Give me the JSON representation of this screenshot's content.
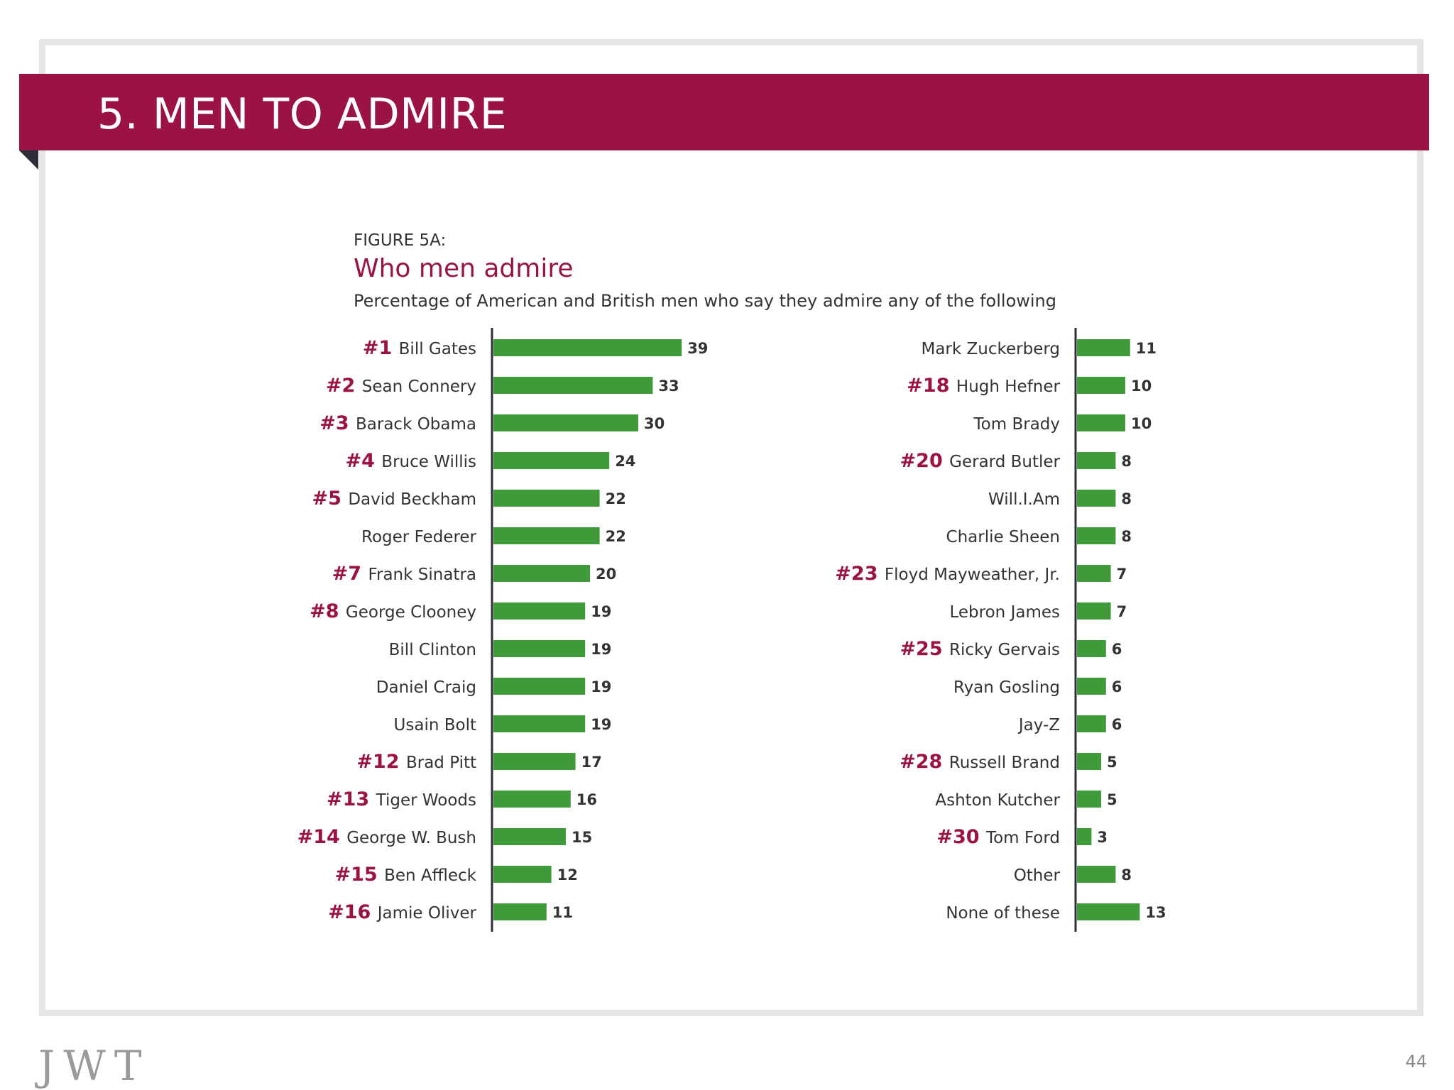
{
  "header": {
    "title": "5. MEN TO ADMIRE"
  },
  "figure": {
    "label": "FIGURE 5A:",
    "title": "Who men admire",
    "subtitle": "Percentage of American and British men who say they admire any of the following"
  },
  "footer": {
    "logo": "JWT",
    "page_number": "44"
  },
  "colors": {
    "brand": "#9b1344",
    "bar": "#3f9b3a",
    "axis": "#2d2d3a"
  },
  "chart_data": {
    "type": "bar",
    "orientation": "horizontal",
    "title": "Who men admire",
    "xlabel": "",
    "ylabel": "",
    "unit": "percent",
    "xlim": [
      0,
      40
    ],
    "panels": [
      {
        "name": "left",
        "items": [
          {
            "rank": "#1",
            "name": "Bill Gates",
            "value": 39
          },
          {
            "rank": "#2",
            "name": "Sean Connery",
            "value": 33
          },
          {
            "rank": "#3",
            "name": "Barack Obama",
            "value": 30
          },
          {
            "rank": "#4",
            "name": "Bruce Willis",
            "value": 24
          },
          {
            "rank": "#5",
            "name": "David Beckham",
            "value": 22
          },
          {
            "rank": "",
            "name": "Roger Federer",
            "value": 22
          },
          {
            "rank": "#7",
            "name": "Frank Sinatra",
            "value": 20
          },
          {
            "rank": "#8",
            "name": "George Clooney",
            "value": 19
          },
          {
            "rank": "",
            "name": "Bill Clinton",
            "value": 19
          },
          {
            "rank": "",
            "name": "Daniel Craig",
            "value": 19
          },
          {
            "rank": "",
            "name": "Usain Bolt",
            "value": 19
          },
          {
            "rank": "#12",
            "name": "Brad Pitt",
            "value": 17
          },
          {
            "rank": "#13",
            "name": "Tiger Woods",
            "value": 16
          },
          {
            "rank": "#14",
            "name": "George W. Bush",
            "value": 15
          },
          {
            "rank": "#15",
            "name": "Ben Affleck",
            "value": 12
          },
          {
            "rank": "#16",
            "name": "Jamie Oliver",
            "value": 11
          }
        ]
      },
      {
        "name": "right",
        "items": [
          {
            "rank": "",
            "name": "Mark Zuckerberg",
            "value": 11
          },
          {
            "rank": "#18",
            "name": "Hugh Hefner",
            "value": 10
          },
          {
            "rank": "",
            "name": "Tom Brady",
            "value": 10
          },
          {
            "rank": "#20",
            "name": "Gerard Butler",
            "value": 8
          },
          {
            "rank": "",
            "name": "Will.I.Am",
            "value": 8
          },
          {
            "rank": "",
            "name": "Charlie Sheen",
            "value": 8
          },
          {
            "rank": "#23",
            "name": "Floyd Mayweather, Jr.",
            "value": 7
          },
          {
            "rank": "",
            "name": "Lebron James",
            "value": 7
          },
          {
            "rank": "#25",
            "name": "Ricky Gervais",
            "value": 6
          },
          {
            "rank": "",
            "name": "Ryan Gosling",
            "value": 6
          },
          {
            "rank": "",
            "name": "Jay-Z",
            "value": 6
          },
          {
            "rank": "#28",
            "name": "Russell Brand",
            "value": 5
          },
          {
            "rank": "",
            "name": "Ashton Kutcher",
            "value": 5
          },
          {
            "rank": "#30",
            "name": "Tom Ford",
            "value": 3
          },
          {
            "rank": "",
            "name": "Other",
            "value": 8
          },
          {
            "rank": "",
            "name": "None of these",
            "value": 13
          }
        ]
      }
    ]
  }
}
